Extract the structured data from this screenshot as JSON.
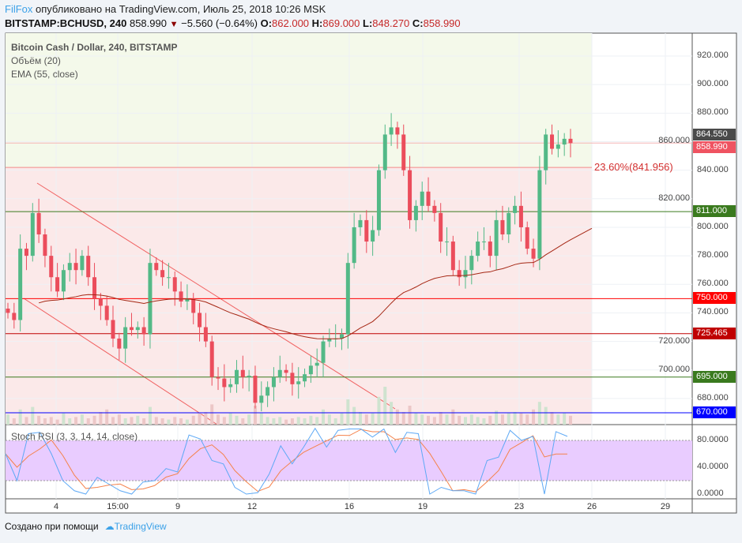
{
  "header": {
    "author": "FilFox",
    "published": "опубликовано на TradingView.com, Июль 25, 2018 10:26 MSK",
    "symbol": "BITSTAMP:BCHUSD, 240",
    "price": "858.990",
    "change": "−5.560 (−0.64%)",
    "o_label": "O:",
    "o": "862.000",
    "h_label": "H:",
    "h": "869.000",
    "l_label": "L:",
    "l": "848.270",
    "c_label": "C:",
    "c": "858.990"
  },
  "legend": {
    "title": "Bitcoin Cash / Dollar, 240, BITSTAMP",
    "volume": "Объём (20)",
    "ema": "EMA (55, close)",
    "stoch": "Stoch RSI (3, 3, 14, 14, close)"
  },
  "footer": {
    "made_with": "Создано при помощи",
    "brand": "TradingView"
  },
  "colors": {
    "up": "#53b987",
    "down": "#eb4d5c",
    "ema": "#a52714",
    "stoch_k": "#5ea9f5",
    "stoch_d": "#f5824b",
    "band": "#d9b3ff"
  },
  "chart_data": [
    {
      "type": "candlestick",
      "title": "Bitcoin Cash / Dollar, 240, BITSTAMP",
      "ylim": [
        670,
        930
      ],
      "y_ticks": [
        "920.000",
        "900.000",
        "880.000",
        "860.000",
        "840.000",
        "820.000",
        "800.000",
        "780.000",
        "760.000",
        "740.000",
        "720.000",
        "700.000",
        "680.000"
      ],
      "x_ticks": [
        "4",
        "15:00",
        "9",
        "12",
        "16",
        "19",
        "23",
        "26",
        "29"
      ],
      "close": [
        740,
        735,
        785,
        780,
        810,
        795,
        780,
        765,
        755,
        770,
        775,
        770,
        780,
        765,
        750,
        745,
        735,
        722,
        715,
        730,
        728,
        730,
        725,
        775,
        770,
        765,
        765,
        755,
        748,
        750,
        740,
        730,
        720,
        695,
        694,
        688,
        690,
        700,
        695,
        696,
        677,
        682,
        688,
        695,
        700,
        698,
        690,
        692,
        697,
        703,
        705,
        720,
        722,
        722,
        725,
        775,
        800,
        805,
        790,
        798,
        840,
        865,
        870,
        865,
        840,
        805,
        815,
        825,
        815,
        810,
        790,
        790,
        770,
        765,
        770,
        780,
        790,
        790,
        780,
        805,
        795,
        810,
        815,
        800,
        785,
        778,
        840,
        865,
        855,
        858,
        862,
        859
      ],
      "volume": [
        8,
        5,
        12,
        6,
        14,
        7,
        5,
        6,
        4,
        9,
        5,
        6,
        8,
        5,
        7,
        10,
        12,
        6,
        8,
        5,
        6,
        7,
        5,
        14,
        6,
        5,
        4,
        6,
        5,
        4,
        7,
        9,
        10,
        16,
        8,
        6,
        9,
        7,
        5,
        8,
        15,
        9,
        6,
        5,
        6,
        4,
        5,
        6,
        5,
        7,
        6,
        12,
        8,
        5,
        9,
        20,
        14,
        10,
        8,
        9,
        22,
        30,
        18,
        12,
        10,
        15,
        9,
        8,
        7,
        6,
        10,
        8,
        12,
        7,
        6,
        8,
        6,
        5,
        7,
        11,
        8,
        9,
        10,
        9,
        8,
        12,
        18,
        14,
        10,
        8,
        9,
        7
      ],
      "levels": [
        {
          "value": "864.550",
          "color": "#4a4a4a"
        },
        {
          "value": "858.990",
          "color": "#ef5361"
        },
        {
          "value": "811.000",
          "color": "#3a7a1e"
        },
        {
          "value": "750.000",
          "color": "#ff0000"
        },
        {
          "value": "725.465",
          "color": "#c00000"
        },
        {
          "value": "695.000",
          "color": "#3a7a1e"
        },
        {
          "value": "670.000",
          "color": "#0000ff"
        }
      ],
      "fib": {
        "label": "23.60%(841.956)",
        "value": 841.956
      },
      "series": [
        {
          "name": "EMA (55, close)"
        }
      ]
    },
    {
      "type": "line",
      "title": "Stoch RSI (3, 3, 14, 14, close)",
      "ylim": [
        0,
        100
      ],
      "y_ticks": [
        "80.0000",
        "40.0000",
        "0.0000"
      ],
      "band": [
        20,
        80
      ],
      "k": [
        60,
        20,
        90,
        92,
        60,
        20,
        5,
        0,
        25,
        15,
        5,
        0,
        18,
        20,
        38,
        33,
        88,
        82,
        50,
        45,
        10,
        0,
        2,
        30,
        72,
        45,
        70,
        98,
        70,
        95,
        97,
        97,
        85,
        97,
        62,
        92,
        90,
        0,
        10,
        5,
        5,
        0,
        50,
        55,
        95,
        80,
        86,
        0,
        93,
        86
      ]
    }
  ]
}
